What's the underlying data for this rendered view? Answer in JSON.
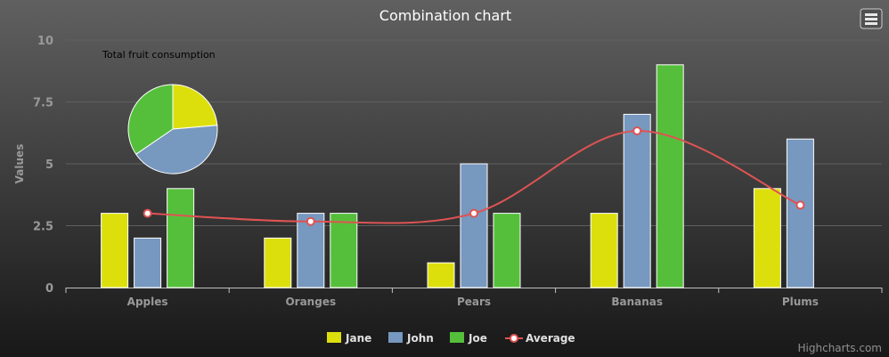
{
  "chart_data": {
    "type": "bar",
    "title": "Combination chart",
    "ylabel": "Values",
    "xlabel": "",
    "ylim": [
      0,
      10
    ],
    "yticks": [
      "0",
      "2.5",
      "5",
      "7.5",
      "10"
    ],
    "ytick_values": [
      0,
      2.5,
      5,
      7.5,
      10
    ],
    "categories": [
      "Apples",
      "Oranges",
      "Pears",
      "Bananas",
      "Plums"
    ],
    "grid": true,
    "legend_position": "bottom-center",
    "series": [
      {
        "name": "Jane",
        "type": "column",
        "color": "#DDDF0D",
        "values": [
          3,
          2,
          1,
          3,
          4
        ]
      },
      {
        "name": "John",
        "type": "column",
        "color": "#7798BF",
        "values": [
          2,
          3,
          5,
          7,
          6
        ]
      },
      {
        "name": "Joe",
        "type": "column",
        "color": "#55BF3B",
        "values": [
          4,
          3,
          3,
          9,
          0
        ]
      },
      {
        "name": "Average",
        "type": "spline",
        "color": "#DF5353",
        "values": [
          3,
          2.67,
          3,
          6.33,
          3.33
        ]
      }
    ],
    "pie": {
      "label": "Total fruit consumption",
      "slices": [
        {
          "name": "Jane",
          "value": 13,
          "color": "#DDDF0D"
        },
        {
          "name": "John",
          "value": 23,
          "color": "#7798BF"
        },
        {
          "name": "Joe",
          "value": 19,
          "color": "#55BF3B"
        }
      ]
    }
  },
  "credits": "Highcharts.com",
  "export_icon": "menu-icon"
}
